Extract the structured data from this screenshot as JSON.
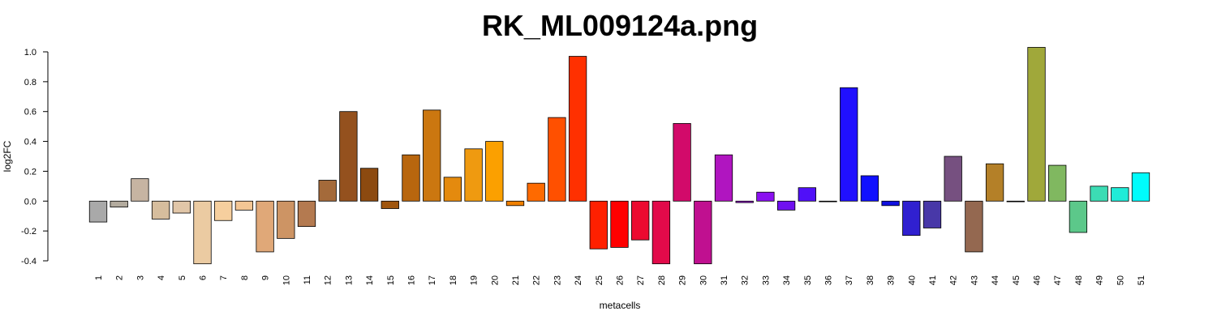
{
  "chart_data": {
    "type": "bar",
    "title": "RK_ML009124a.png",
    "xlabel": "metacells",
    "ylabel": "log2FC",
    "ylim": [
      -0.4,
      1.0
    ],
    "yticks": [
      -0.4,
      -0.2,
      0.0,
      0.2,
      0.4,
      0.6,
      0.8,
      1.0
    ],
    "ytick_labels": [
      "-0.4",
      "-0.2",
      "0.0",
      "0.2",
      "0.4",
      "0.6",
      "0.8",
      "1.0"
    ],
    "grid": false,
    "legend": "none",
    "categories": [
      "1",
      "2",
      "3",
      "4",
      "5",
      "6",
      "7",
      "8",
      "9",
      "10",
      "11",
      "12",
      "13",
      "14",
      "15",
      "16",
      "17",
      "18",
      "19",
      "20",
      "21",
      "22",
      "23",
      "24",
      "25",
      "26",
      "27",
      "28",
      "29",
      "30",
      "31",
      "32",
      "33",
      "34",
      "35",
      "36",
      "37",
      "38",
      "39",
      "40",
      "41",
      "42",
      "43",
      "44",
      "45",
      "46",
      "47",
      "48",
      "49",
      "50",
      "51"
    ],
    "values": [
      -0.14,
      -0.04,
      0.15,
      -0.12,
      -0.08,
      -0.42,
      -0.13,
      -0.06,
      -0.34,
      -0.25,
      -0.17,
      0.14,
      0.6,
      0.22,
      -0.05,
      0.31,
      0.61,
      0.16,
      0.35,
      0.4,
      -0.03,
      0.12,
      0.56,
      0.97,
      -0.32,
      -0.31,
      -0.26,
      -0.42,
      0.52,
      -0.42,
      0.31,
      -0.01,
      0.06,
      -0.06,
      0.09,
      0.0,
      0.76,
      0.17,
      -0.03,
      -0.23,
      -0.18,
      0.3,
      -0.34,
      0.25,
      0.0,
      1.03,
      0.24,
      -0.21,
      0.1,
      0.09,
      0.19
    ],
    "colors": [
      "#a9a9a9",
      "#b3ab9e",
      "#c6b4a2",
      "#d6bd9d",
      "#e1c6a8",
      "#ebcba2",
      "#f6cf9e",
      "#f4c694",
      "#e0a878",
      "#cd9464",
      "#b47a50",
      "#a46a3a",
      "#94511e",
      "#8c4a10",
      "#a0560e",
      "#b8660e",
      "#cb7710",
      "#e48a0e",
      "#ef9a10",
      "#fba000",
      "#f08000",
      "#fe6a00",
      "#ff5000",
      "#ff3000",
      "#ff2000",
      "#ff0000",
      "#ec0a30",
      "#e20a4a",
      "#d20a6a",
      "#c01090",
      "#b015c0",
      "#9a10d8",
      "#8a10f0",
      "#7010f0",
      "#5010f8",
      "#3010ff",
      "#2010ff",
      "#1010ff",
      "#1010e0",
      "#3020d0",
      "#4838a8",
      "#765080",
      "#946850",
      "#b48028",
      "#a0a030",
      "#a0a83a",
      "#80b860",
      "#5cc88a",
      "#3cdcb4",
      "#20ecd8",
      "#00fcfc"
    ]
  }
}
